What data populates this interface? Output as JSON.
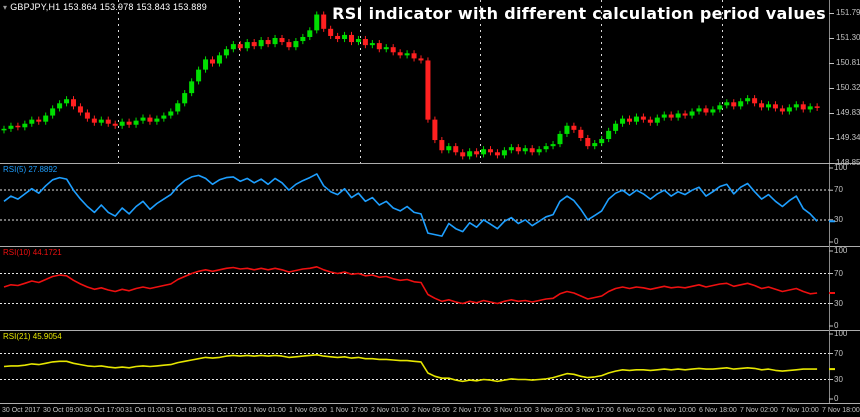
{
  "window": {
    "symbol_info": "GBPJPY,H1  153.864 153.978 153.843 153.889",
    "dropdown_icon": "symbol-dropdown-icon"
  },
  "annotation": {
    "title": "RSI indicator with different calculation period values"
  },
  "colors": {
    "background": "#000000",
    "bull": "#00DE00",
    "bear": "#FF2020",
    "grid": "#FFFFFF",
    "separator": "#ADADAD",
    "axis_border": "#8a8a8a",
    "axis_text": "#C2C2C2",
    "title_text": "#FFFFFF",
    "rsi5": "#1E9FFF",
    "rsi10": "#EE1010",
    "rsi21": "#E6E600"
  },
  "price_axis": {
    "labels": [
      "151.790",
      "151.300",
      "150.810",
      "150.320",
      "149.830",
      "149.340",
      "148.850"
    ]
  },
  "time_axis": {
    "labels": [
      "30 Oct 2017",
      "30 Oct 09:00",
      "30 Oct 17:00",
      "31 Oct 01:00",
      "31 Oct 09:00",
      "31 Oct 17:00",
      "1 Nov 01:00",
      "1 Nov 09:00",
      "1 Nov 17:00",
      "2 Nov 01:00",
      "2 Nov 09:00",
      "2 Nov 17:00",
      "3 Nov 01:00",
      "3 Nov 09:00",
      "3 Nov 17:00",
      "6 Nov 02:00",
      "6 Nov 10:00",
      "6 Nov 18:00",
      "7 Nov 02:00",
      "7 Nov 10:00",
      "7 Nov 18:00"
    ]
  },
  "rsi_scale": {
    "labels": [
      "100",
      "70",
      "30",
      "0"
    ],
    "values": [
      100,
      70,
      30,
      0
    ],
    "dotted_levels": [
      70,
      30
    ]
  },
  "chart_data": [
    {
      "type": "candlestick",
      "symbol": "GBPJPY",
      "timeframe": "H1",
      "open": "153.864",
      "high": "153.978",
      "low": "153.843",
      "close": "153.889",
      "y_axis_top": 151.79,
      "y_axis_step": 0.49,
      "wick": 0.06,
      "closes": [
        149.52,
        149.58,
        149.55,
        149.62,
        149.7,
        149.66,
        149.78,
        149.92,
        150.02,
        150.1,
        149.96,
        149.84,
        149.72,
        149.64,
        149.7,
        149.62,
        149.58,
        149.66,
        149.6,
        149.68,
        149.74,
        149.66,
        149.72,
        149.78,
        149.86,
        150.02,
        150.22,
        150.45,
        150.68,
        150.88,
        150.8,
        150.96,
        151.08,
        151.18,
        151.1,
        151.22,
        151.14,
        151.26,
        151.18,
        151.3,
        151.22,
        151.12,
        151.24,
        151.32,
        151.45,
        151.76,
        151.48,
        151.34,
        151.28,
        151.36,
        151.22,
        151.28,
        151.16,
        151.2,
        151.08,
        151.12,
        151.02,
        150.96,
        151.0,
        150.9,
        150.86,
        149.7,
        149.3,
        149.1,
        149.18,
        149.06,
        148.98,
        149.08,
        149.02,
        149.12,
        149.06,
        149.0,
        149.1,
        149.16,
        149.08,
        149.14,
        149.06,
        149.12,
        149.18,
        149.22,
        149.42,
        149.58,
        149.5,
        149.34,
        149.18,
        149.24,
        149.32,
        149.48,
        149.62,
        149.72,
        149.66,
        149.76,
        149.7,
        149.64,
        149.74,
        149.8,
        149.74,
        149.82,
        149.78,
        149.86,
        149.92,
        149.84,
        149.9,
        149.98,
        150.04,
        149.96,
        150.06,
        150.12,
        150.02,
        149.94,
        150.0,
        149.92,
        149.86,
        149.94,
        150.0,
        149.9,
        149.96,
        149.93
      ]
    },
    {
      "type": "line",
      "name": "RSI(5)",
      "period": 5,
      "current": 27.8892,
      "label": "RSI(5) 27.8892",
      "color": "#1E9FFF",
      "range": [
        0,
        100
      ],
      "levels": [
        70,
        30
      ],
      "values": [
        55,
        62,
        58,
        65,
        72,
        66,
        76,
        84,
        87,
        85,
        70,
        58,
        48,
        40,
        50,
        40,
        35,
        46,
        38,
        48,
        55,
        44,
        52,
        58,
        64,
        75,
        83,
        88,
        90,
        86,
        78,
        84,
        87,
        88,
        82,
        86,
        80,
        85,
        78,
        86,
        80,
        70,
        78,
        83,
        87,
        92,
        76,
        68,
        64,
        72,
        60,
        66,
        55,
        60,
        50,
        55,
        46,
        42,
        48,
        40,
        38,
        12,
        10,
        8,
        25,
        18,
        14,
        26,
        20,
        30,
        24,
        18,
        28,
        33,
        25,
        30,
        22,
        28,
        34,
        37,
        55,
        62,
        56,
        44,
        30,
        36,
        42,
        58,
        66,
        70,
        63,
        70,
        65,
        58,
        65,
        70,
        62,
        68,
        64,
        70,
        74,
        62,
        68,
        75,
        78,
        65,
        74,
        79,
        68,
        58,
        64,
        55,
        48,
        56,
        62,
        45,
        38,
        28
      ]
    },
    {
      "type": "line",
      "name": "RSI(10)",
      "period": 10,
      "current": 44.1721,
      "label": "RSI(10) 44.1721",
      "color": "#EE1010",
      "range": [
        0,
        100
      ],
      "levels": [
        70,
        30
      ],
      "values": [
        52,
        55,
        54,
        57,
        60,
        58,
        62,
        66,
        68,
        67,
        61,
        56,
        52,
        49,
        51,
        48,
        46,
        49,
        47,
        50,
        52,
        50,
        52,
        54,
        56,
        62,
        66,
        70,
        73,
        75,
        73,
        75,
        77,
        78,
        76,
        77,
        75,
        77,
        75,
        77,
        75,
        72,
        74,
        76,
        77,
        79,
        75,
        72,
        70,
        72,
        69,
        70,
        67,
        68,
        65,
        66,
        63,
        61,
        62,
        59,
        58,
        42,
        37,
        33,
        35,
        32,
        30,
        33,
        31,
        34,
        32,
        30,
        33,
        35,
        33,
        34,
        32,
        34,
        36,
        37,
        43,
        46,
        44,
        40,
        36,
        38,
        40,
        46,
        50,
        52,
        50,
        52,
        51,
        49,
        51,
        53,
        51,
        52,
        51,
        53,
        55,
        52,
        54,
        56,
        57,
        53,
        55,
        57,
        54,
        50,
        52,
        49,
        46,
        48,
        50,
        46,
        43,
        44
      ]
    },
    {
      "type": "line",
      "name": "RSI(21)",
      "period": 21,
      "current": 45.9054,
      "label": "RSI(21) 45.9054",
      "color": "#E6E600",
      "range": [
        0,
        100
      ],
      "levels": [
        70,
        30
      ],
      "values": [
        50,
        51,
        51,
        52,
        54,
        53,
        55,
        57,
        58,
        58,
        55,
        53,
        51,
        50,
        51,
        49,
        48,
        49,
        48,
        50,
        51,
        50,
        51,
        52,
        53,
        56,
        58,
        60,
        62,
        64,
        63,
        64,
        66,
        67,
        66,
        67,
        66,
        67,
        66,
        67,
        66,
        64,
        65,
        66,
        67,
        68,
        66,
        65,
        64,
        65,
        63,
        64,
        62,
        62,
        61,
        61,
        60,
        59,
        59,
        58,
        57,
        40,
        35,
        32,
        32,
        29,
        27,
        29,
        28,
        30,
        29,
        27,
        29,
        31,
        30,
        30,
        29,
        30,
        31,
        33,
        36,
        39,
        38,
        35,
        33,
        34,
        36,
        40,
        43,
        45,
        44,
        45,
        45,
        44,
        45,
        46,
        45,
        46,
        45,
        46,
        47,
        46,
        46,
        47,
        48,
        46,
        47,
        48,
        47,
        45,
        46,
        44,
        43,
        44,
        45,
        46,
        46,
        46
      ]
    }
  ]
}
